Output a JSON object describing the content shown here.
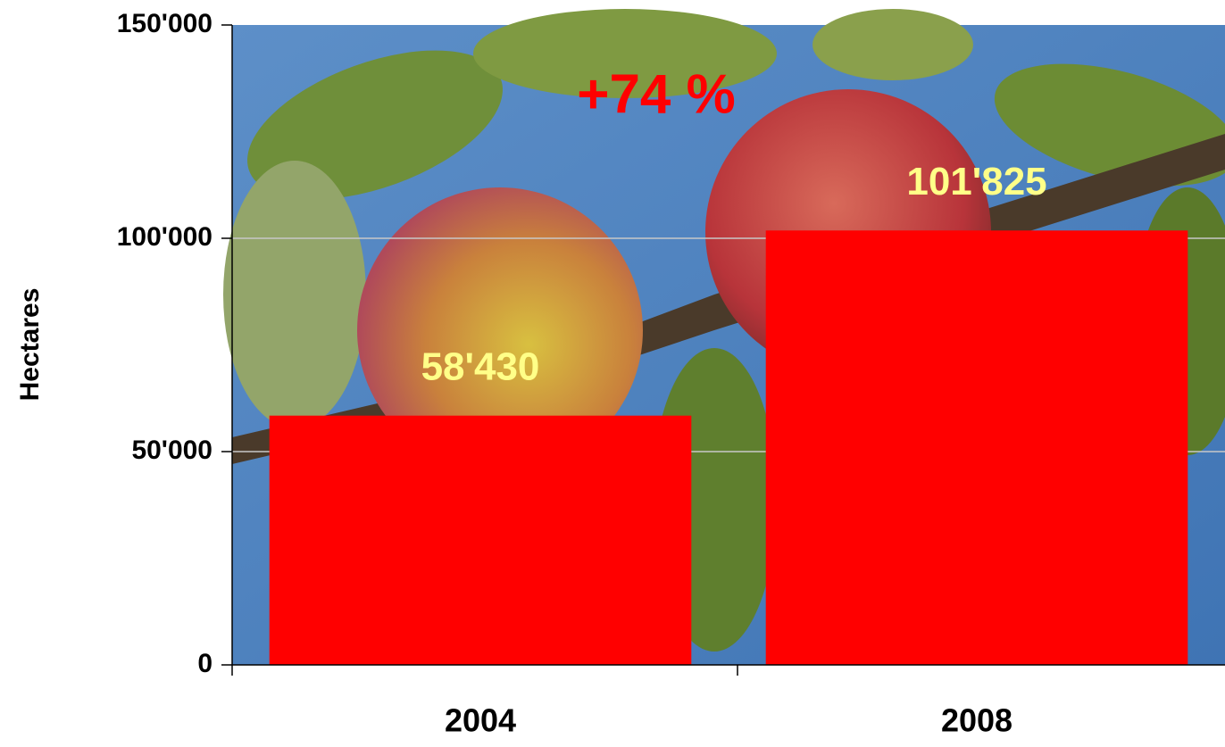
{
  "chart_data": {
    "type": "bar",
    "categories": [
      "2004",
      "2008"
    ],
    "values": [
      58430,
      101825
    ],
    "value_labels": [
      "58'430",
      "101'825"
    ],
    "color": "#ff0000",
    "ylabel": "Hectares",
    "annotation": "+74 %",
    "ylim": [
      0,
      150000
    ],
    "yticks": [
      0,
      {
        "value": 50000,
        "label": "50'000"
      },
      {
        "value": 100000,
        "label": "100'000"
      },
      {
        "value": 150000,
        "label": "150'000"
      }
    ],
    "grid": true
  }
}
